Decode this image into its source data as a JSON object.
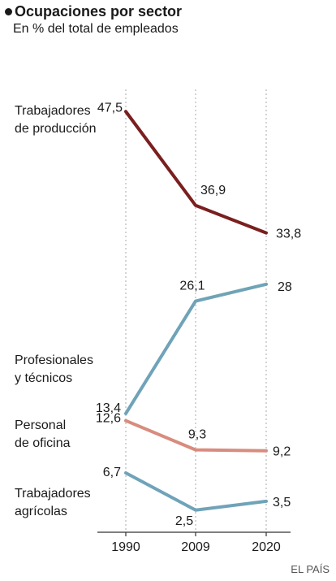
{
  "chart_data": {
    "type": "line",
    "title": "Ocupaciones por sector",
    "subtitle": "En % del total de empleados",
    "x": [
      "1990",
      "2009",
      "2020"
    ],
    "series": [
      {
        "name": "Trabajadores de producción",
        "label_lines": [
          "Trabajadores",
          "de producción"
        ],
        "values": [
          47.5,
          36.9,
          33.8
        ],
        "value_labels": [
          "47,5",
          "36,9",
          "33,8"
        ],
        "color": "#7a1f1f"
      },
      {
        "name": "Profesionales y técnicos",
        "label_lines": [
          "Profesionales",
          "y técnicos"
        ],
        "values": [
          13.4,
          26.1,
          28
        ],
        "value_labels": [
          "13,4",
          "26,1",
          "28"
        ],
        "color": "#6fa3b8"
      },
      {
        "name": "Personal de oficina",
        "label_lines": [
          "Personal",
          "de oficina"
        ],
        "values": [
          12.6,
          9.3,
          9.2
        ],
        "value_labels": [
          "12,6",
          "9,3",
          "9,2"
        ],
        "color": "#d88c7e"
      },
      {
        "name": "Trabajadores agrícolas",
        "label_lines": [
          "Trabajadores",
          "agrícolas"
        ],
        "values": [
          6.7,
          2.5,
          3.5
        ],
        "value_labels": [
          "6,7",
          "2,5",
          "3,5"
        ],
        "color": "#6fa3b8"
      }
    ],
    "ylim": [
      0,
      50
    ],
    "grid": "dotted vertical lines at each year"
  },
  "source": "EL PAÍS"
}
